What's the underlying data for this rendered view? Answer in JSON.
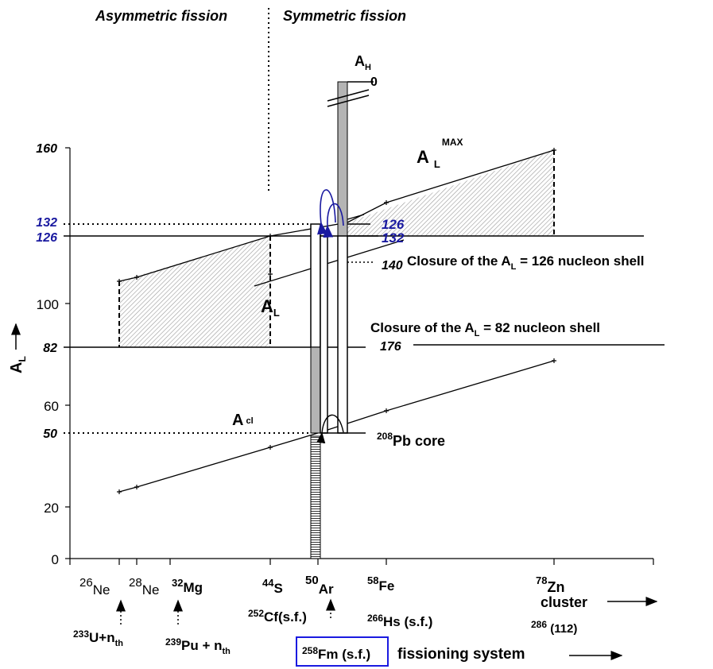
{
  "headings": {
    "left": "Asymmetric fission",
    "right": "Symmetric fission"
  },
  "y_axis": {
    "label_main": "A",
    "label_sub": "L",
    "ticks": [
      {
        "text": "160",
        "style": "bi"
      },
      {
        "text": "132",
        "style": "bi-blue"
      },
      {
        "text": "126",
        "style": "bi-blue"
      },
      {
        "text": "100",
        "style": "r"
      },
      {
        "text": "82",
        "style": "bi"
      },
      {
        "text": "60",
        "style": "r"
      },
      {
        "text": "50",
        "style": "bi"
      },
      {
        "text": "20",
        "style": "r"
      },
      {
        "text": "0",
        "style": "r"
      }
    ]
  },
  "curves": {
    "a_h": {
      "main": "A",
      "sub": "H"
    },
    "a_l_max": {
      "main": "A",
      "sub": "L",
      "sup": "MAX"
    },
    "a_l": {
      "main": "A",
      "sub": "L"
    },
    "a_cl": {
      "main": "A",
      "sub": "cl"
    }
  },
  "bar_labels": {
    "zero": "0",
    "v126": "126",
    "v132": "132",
    "v140": "140",
    "v176": "176"
  },
  "annotations": {
    "closure_126": {
      "pre": "Closure of the A",
      "sub": "L",
      "post": " = 126 nucleon shell"
    },
    "closure_82": {
      "pre": "Closure of the A",
      "sub": "L",
      "post": " = 82 nucleon shell"
    },
    "pb_core": {
      "sup": "208",
      "text": "Pb core"
    }
  },
  "clusters": [
    {
      "sup": "26",
      "name": "Ne"
    },
    {
      "sup": "28",
      "name": "Ne"
    },
    {
      "sup": "32",
      "name": "Mg"
    },
    {
      "sup": "44",
      "name": "S"
    },
    {
      "sup": "50",
      "name": "Ar"
    },
    {
      "sup": "58",
      "name": "Fe"
    },
    {
      "sup": "78",
      "name": "Zn"
    }
  ],
  "cluster_axis_label": "cluster",
  "fissioning_systems": {
    "u233": {
      "sup": "233",
      "text": "U+n",
      "sub": "th"
    },
    "pu239": {
      "sup": "239",
      "text": "Pu + n",
      "sub": "th"
    },
    "cf252": {
      "sup": "252",
      "text": "Cf(s.f.)"
    },
    "hs266": {
      "sup": "266",
      "text": "Hs (s.f.)"
    },
    "e112": {
      "sup": "286",
      "text": " (112)"
    },
    "fm258": {
      "sup": "258",
      "text": "Fm (s.f.)"
    }
  },
  "fissioning_axis_label": "fissioning system",
  "colors": {
    "ink": "#000000",
    "shell_blue": "#1a1aa0",
    "highlight_box": "#1a1ae0",
    "bar_gray": "#b4b4b4",
    "hatch": "#c8c8c8"
  }
}
